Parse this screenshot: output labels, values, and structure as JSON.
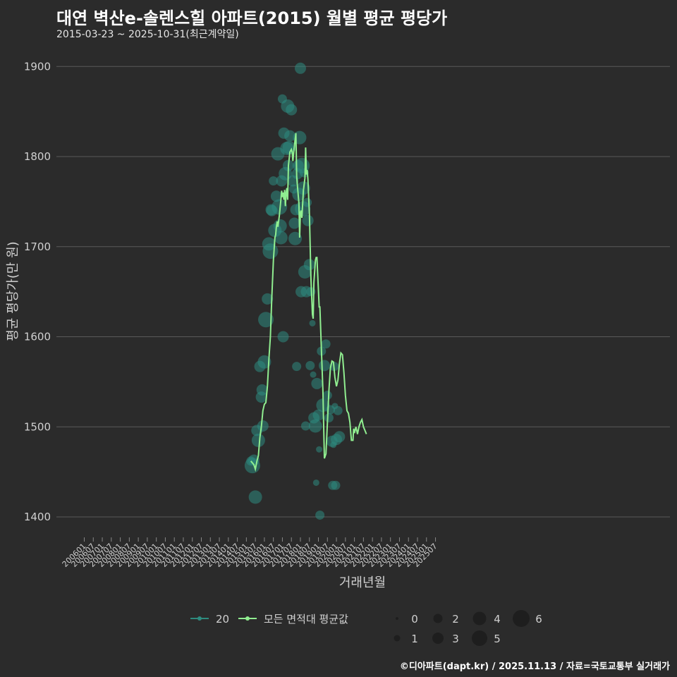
{
  "header": {
    "title": "대연 벽산e-솔렌스힐 아파트(2015) 월별 평균 평당가",
    "subtitle": "2015-03-23 ~ 2025-10-31(최근계약일)"
  },
  "footer": {
    "credit": "©디아파트(dapt.kr) / 2025.11.13 / 자료=국토교통부 실거래가"
  },
  "colors": {
    "background": "#2b2b2b",
    "grid": "#5a5a5a",
    "line": "#90ee90",
    "points": "#2e8b7f",
    "text": "#d0d0d0"
  },
  "chart_data": {
    "type": "line+scatter",
    "title": "대연 벽산e-솔렌스힐 아파트(2015) 월별 평균 평당가",
    "xlabel": "거래년월",
    "ylabel": "평균 평당가(만 원)",
    "ylim": [
      1360,
      1920
    ],
    "y_ticks": [
      1400,
      1500,
      1600,
      1700,
      1800,
      1900
    ],
    "x_tick_labels": [
      "200601",
      "200607",
      "200701",
      "200707",
      "200801",
      "200807",
      "200901",
      "200907",
      "201001",
      "201007",
      "201101",
      "201107",
      "201201",
      "201207",
      "201301",
      "201307",
      "201401",
      "201407",
      "201501",
      "201507",
      "201601",
      "201607",
      "201701",
      "201707",
      "201801",
      "201807",
      "201901",
      "201907",
      "202001",
      "202007",
      "202101",
      "202107",
      "202201",
      "202207",
      "202301",
      "202307",
      "202401",
      "202407",
      "202501",
      "202507"
    ],
    "legend": {
      "series": [
        {
          "name": "20",
          "color": "#2e8b7f"
        },
        {
          "name": "모든 면적대 평균값",
          "color": "#90ee90"
        }
      ],
      "size_title": "",
      "size_values": [
        0,
        1,
        2,
        3,
        4,
        5,
        6
      ]
    },
    "line_series": {
      "name": "모든 면적대 평균값",
      "points": [
        [
          111.0,
          1462
        ],
        [
          113.0,
          1458
        ],
        [
          114.0,
          1453
        ],
        [
          115.0,
          1462
        ],
        [
          116.0,
          1468
        ],
        [
          117.0,
          1488
        ],
        [
          118.0,
          1500
        ],
        [
          119.0,
          1518
        ],
        [
          120.0,
          1525
        ],
        [
          121.0,
          1527
        ],
        [
          122.0,
          1545
        ],
        [
          123.0,
          1575
        ],
        [
          124.0,
          1600
        ],
        [
          125.0,
          1645
        ],
        [
          126.0,
          1685
        ],
        [
          127.0,
          1710
        ],
        [
          127.5,
          1713
        ],
        [
          128.0,
          1722
        ],
        [
          128.5,
          1728
        ],
        [
          129.0,
          1722
        ],
        [
          130.0,
          1735
        ],
        [
          131.0,
          1752
        ],
        [
          131.5,
          1762
        ],
        [
          132.0,
          1755
        ],
        [
          132.5,
          1760
        ],
        [
          133.0,
          1752
        ],
        [
          133.5,
          1763
        ],
        [
          134.0,
          1745
        ],
        [
          134.5,
          1760
        ],
        [
          135.0,
          1765
        ],
        [
          135.5,
          1752
        ],
        [
          136.0,
          1790
        ],
        [
          137.0,
          1805
        ],
        [
          138.0,
          1808
        ],
        [
          138.5,
          1805
        ],
        [
          139.0,
          1795
        ],
        [
          140.0,
          1812
        ],
        [
          141.0,
          1826
        ],
        [
          141.5,
          1778
        ],
        [
          142.0,
          1768
        ],
        [
          143.0,
          1748
        ],
        [
          143.5,
          1710
        ],
        [
          144.0,
          1738
        ],
        [
          144.5,
          1740
        ],
        [
          145.0,
          1732
        ],
        [
          146.0,
          1762
        ],
        [
          147.0,
          1776
        ],
        [
          147.5,
          1810
        ],
        [
          148.0,
          1780
        ],
        [
          148.5,
          1785
        ],
        [
          149.0,
          1775
        ],
        [
          150.0,
          1735
        ],
        [
          151.0,
          1665
        ],
        [
          152.0,
          1625
        ],
        [
          152.5,
          1620
        ],
        [
          153.0,
          1660
        ],
        [
          154.0,
          1685
        ],
        [
          154.5,
          1688
        ],
        [
          155.0,
          1688
        ],
        [
          156.0,
          1652
        ],
        [
          156.5,
          1633
        ],
        [
          157.0,
          1633
        ],
        [
          158.0,
          1585
        ],
        [
          159.0,
          1540
        ],
        [
          160.0,
          1465
        ],
        [
          161.0,
          1470
        ],
        [
          162.0,
          1505
        ],
        [
          163.0,
          1540
        ],
        [
          164.0,
          1565
        ],
        [
          165.0,
          1573
        ],
        [
          166.0,
          1572
        ],
        [
          167.0,
          1555
        ],
        [
          168.0,
          1545
        ],
        [
          169.0,
          1552
        ],
        [
          170.0,
          1570
        ],
        [
          171.0,
          1582
        ],
        [
          172.0,
          1580
        ],
        [
          173.0,
          1560
        ],
        [
          174.0,
          1535
        ],
        [
          175.0,
          1518
        ],
        [
          176.0,
          1515
        ],
        [
          177.0,
          1505
        ],
        [
          178.0,
          1485
        ],
        [
          179.0,
          1485
        ],
        [
          179.5,
          1498
        ],
        [
          180.0,
          1493
        ],
        [
          181.0,
          1500
        ],
        [
          182.0,
          1492
        ],
        [
          183.0,
          1500
        ],
        [
          184.0,
          1505
        ],
        [
          185.0,
          1508
        ],
        [
          186.0,
          1500
        ],
        [
          187.0,
          1496
        ],
        [
          188.0,
          1492
        ]
      ]
    },
    "scatter_series": {
      "name": "20",
      "points": [
        [
          111,
          1462,
          2
        ],
        [
          112,
          1457,
          5
        ],
        [
          113,
          1463,
          3
        ],
        [
          114,
          1422,
          4
        ],
        [
          115,
          1496,
          3
        ],
        [
          116,
          1485,
          4
        ],
        [
          117,
          1567,
          3
        ],
        [
          118,
          1533,
          3
        ],
        [
          118.5,
          1541,
          3
        ],
        [
          119,
          1501,
          3
        ],
        [
          120,
          1572,
          4
        ],
        [
          121,
          1619,
          5
        ],
        [
          122,
          1642,
          3
        ],
        [
          123,
          1703,
          4
        ],
        [
          124,
          1695,
          5
        ],
        [
          124.5,
          1741,
          3
        ],
        [
          125,
          1740,
          3
        ],
        [
          126,
          1773,
          2
        ],
        [
          127,
          1718,
          4
        ],
        [
          128,
          1756,
          3
        ],
        [
          129,
          1803,
          4
        ],
        [
          130,
          1744,
          5
        ],
        [
          130.5,
          1723,
          4
        ],
        [
          131,
          1710,
          4
        ],
        [
          131.5,
          1773,
          3
        ],
        [
          132,
          1864,
          2
        ],
        [
          132.5,
          1600,
          3
        ],
        [
          133,
          1826,
          3
        ],
        [
          134,
          1781,
          4
        ],
        [
          135,
          1809,
          4
        ],
        [
          135.5,
          1856,
          4
        ],
        [
          136,
          1790,
          3
        ],
        [
          136.5,
          1810,
          4
        ],
        [
          137,
          1823,
          3
        ],
        [
          138,
          1852,
          3
        ],
        [
          139,
          1773,
          3
        ],
        [
          139.5,
          1764,
          2
        ],
        [
          140,
          1726,
          3
        ],
        [
          140.5,
          1709,
          4
        ],
        [
          141,
          1741,
          3
        ],
        [
          141.5,
          1567,
          2
        ],
        [
          142,
          1781,
          3
        ],
        [
          142.5,
          1790,
          3
        ],
        [
          143,
          1758,
          4
        ],
        [
          143.5,
          1821,
          4
        ],
        [
          144,
          1898,
          3
        ],
        [
          144.5,
          1650,
          3
        ],
        [
          145,
          1790,
          5
        ],
        [
          145.5,
          1742,
          5
        ],
        [
          146,
          1765,
          4
        ],
        [
          146.5,
          1782,
          2
        ],
        [
          147,
          1672,
          4
        ],
        [
          147.5,
          1501,
          2
        ],
        [
          148,
          1650,
          3
        ],
        [
          148.5,
          1749,
          2
        ],
        [
          149,
          1729,
          3
        ],
        [
          150,
          1680,
          3
        ],
        [
          150.5,
          1568,
          2
        ],
        [
          151,
          1650,
          2
        ],
        [
          152,
          1615,
          1
        ],
        [
          152.5,
          1558,
          1
        ],
        [
          153,
          1510,
          3
        ],
        [
          154,
          1501,
          4
        ],
        [
          154.5,
          1438,
          1
        ],
        [
          155,
          1548,
          3
        ],
        [
          156,
          1513,
          3
        ],
        [
          156.5,
          1475,
          1
        ],
        [
          157,
          1402,
          2
        ],
        [
          158,
          1584,
          2
        ],
        [
          159,
          1524,
          4
        ],
        [
          160,
          1568,
          3
        ],
        [
          161,
          1592,
          2
        ],
        [
          162,
          1535,
          2
        ],
        [
          163,
          1510,
          2
        ],
        [
          164,
          1519,
          2
        ],
        [
          165,
          1484,
          3
        ],
        [
          165.5,
          1435,
          2
        ],
        [
          166,
          1480,
          1
        ],
        [
          166.5,
          1567,
          2
        ],
        [
          167,
          1523,
          1
        ],
        [
          167.5,
          1435,
          2
        ],
        [
          168,
          1486,
          3
        ],
        [
          169,
          1518,
          2
        ],
        [
          170,
          1489,
          3
        ]
      ]
    }
  }
}
